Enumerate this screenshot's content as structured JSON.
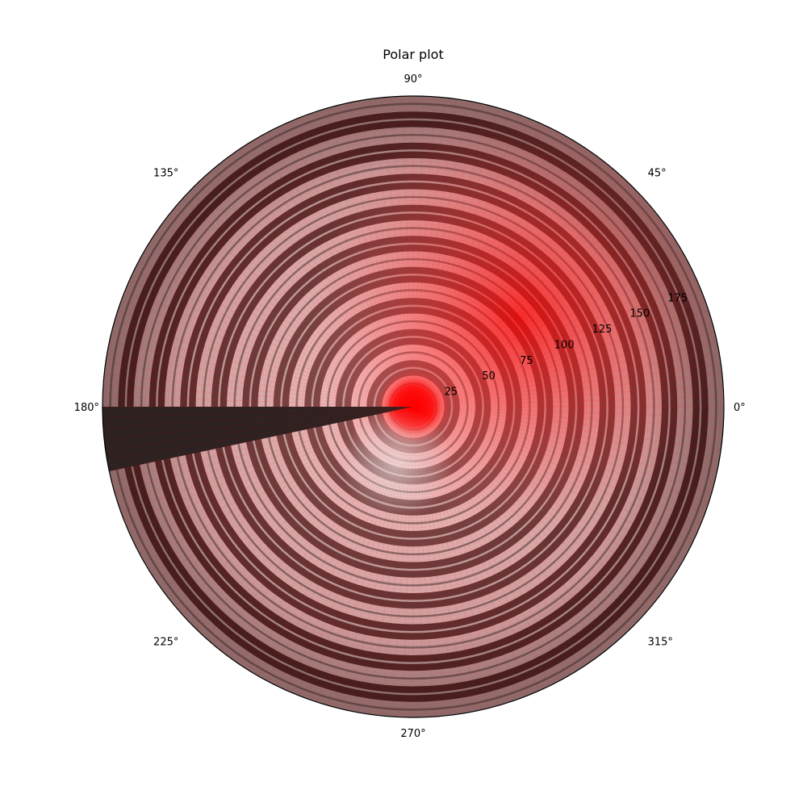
{
  "chart_data": {
    "type": "heatmap",
    "projection": "polar",
    "title": "Polar plot",
    "theta_tick_labels": [
      "0°",
      "45°",
      "90°",
      "135°",
      "180°",
      "225°",
      "270°",
      "315°"
    ],
    "theta_ticks_deg": [
      0,
      45,
      90,
      135,
      180,
      225,
      270,
      315
    ],
    "r_tick_labels": [
      "25",
      "50",
      "75",
      "100",
      "125",
      "150",
      "175"
    ],
    "r_ticks": [
      25,
      50,
      75,
      100,
      125,
      150,
      175
    ],
    "rlim": [
      0,
      190
    ],
    "r_label_angle_deg": 22.5,
    "grid": true,
    "colormap": {
      "name": "red-grey rings",
      "colors": [
        "#2b2222",
        "#8a6b6b",
        "#e8c8c8",
        "#cfcfcf",
        "#ff0000"
      ]
    },
    "surface": {
      "description_source": "concentric rings with red peak near origin offset toward ~45°",
      "ring_spacing": 9.5,
      "hot_center_r": 10,
      "hot_spot_theta_deg": 40,
      "hot_spot_r": 85,
      "gap_wedge_theta_range_deg": [
        180,
        192
      ],
      "gap_wedge_color": "#2b2222"
    }
  }
}
